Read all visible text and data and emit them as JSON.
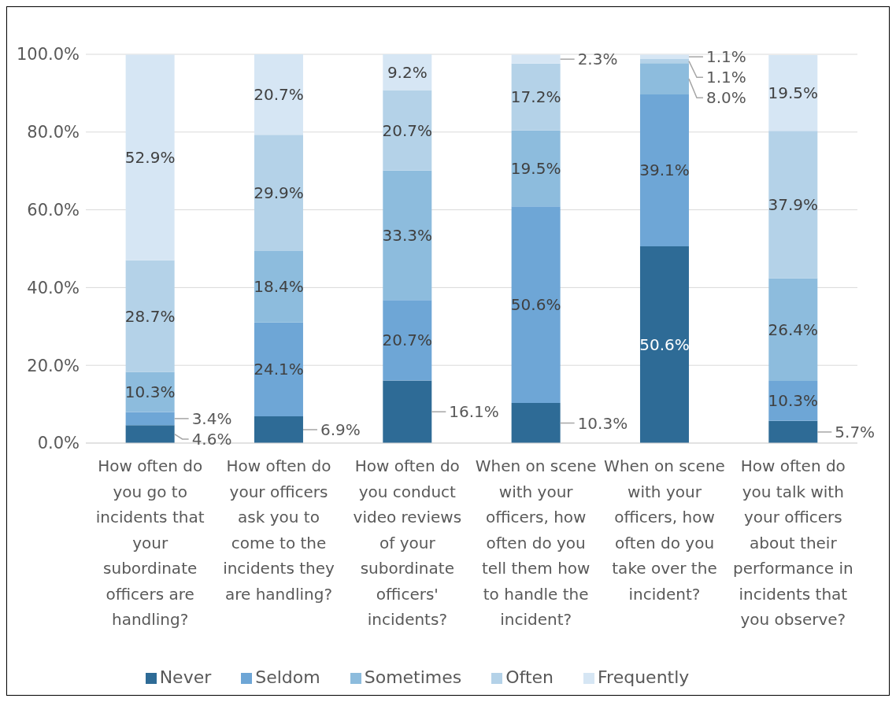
{
  "chart_data": {
    "type": "bar",
    "stacked": true,
    "categories": [
      "How often do you go to incidents that your subordinate officers are handling?",
      "How often do your officers ask you to come to the incidents they are handling?",
      "How often do you conduct video reviews of your subordinate officers' incidents?",
      "When on scene with your officers, how often do you tell them how to handle the incident?",
      "When on scene with your officers, how often do you take over the incident?",
      "How often do you talk with your officers about their performance in incidents that you observe?"
    ],
    "series": [
      {
        "name": "Never",
        "color": "#2e6b96",
        "values": [
          4.6,
          6.9,
          16.1,
          10.3,
          50.6,
          5.7
        ],
        "value_labels": [
          "4.6%",
          "6.9%",
          "16.1%",
          "10.3%",
          "50.6%",
          "5.7%"
        ]
      },
      {
        "name": "Seldom",
        "color": "#6ea6d6",
        "values": [
          3.4,
          24.1,
          20.7,
          50.6,
          39.1,
          10.3
        ],
        "value_labels": [
          "3.4%",
          "24.1%",
          "20.7%",
          "50.6%",
          "39.1%",
          "10.3%"
        ]
      },
      {
        "name": "Sometimes",
        "color": "#8dbcdd",
        "values": [
          10.3,
          18.4,
          33.3,
          19.5,
          8.0,
          26.4
        ],
        "value_labels": [
          "10.3%",
          "18.4%",
          "33.3%",
          "19.5%",
          "8.0%",
          "26.4%"
        ]
      },
      {
        "name": "Often",
        "color": "#b4d2e8",
        "values": [
          28.7,
          29.9,
          20.7,
          17.2,
          1.1,
          37.9
        ],
        "value_labels": [
          "28.7%",
          "29.9%",
          "20.7%",
          "17.2%",
          "1.1%",
          "37.9%"
        ]
      },
      {
        "name": "Frequently",
        "color": "#d6e6f4",
        "values": [
          52.9,
          20.7,
          9.2,
          2.3,
          1.1,
          19.5
        ],
        "value_labels": [
          "52.9%",
          "20.7%",
          "9.2%",
          "2.3%",
          "1.1%",
          "19.5%"
        ]
      }
    ],
    "ylim": [
      0,
      100
    ],
    "yticks": [
      {
        "value": 0,
        "label": "0.0%"
      },
      {
        "value": 20,
        "label": "20.0%"
      },
      {
        "value": 40,
        "label": "40.0%"
      },
      {
        "value": 60,
        "label": "60.0%"
      },
      {
        "value": 80,
        "label": "80.0%"
      },
      {
        "value": 100,
        "label": "100.0%"
      }
    ],
    "grid": "y",
    "legend": "bottom"
  }
}
